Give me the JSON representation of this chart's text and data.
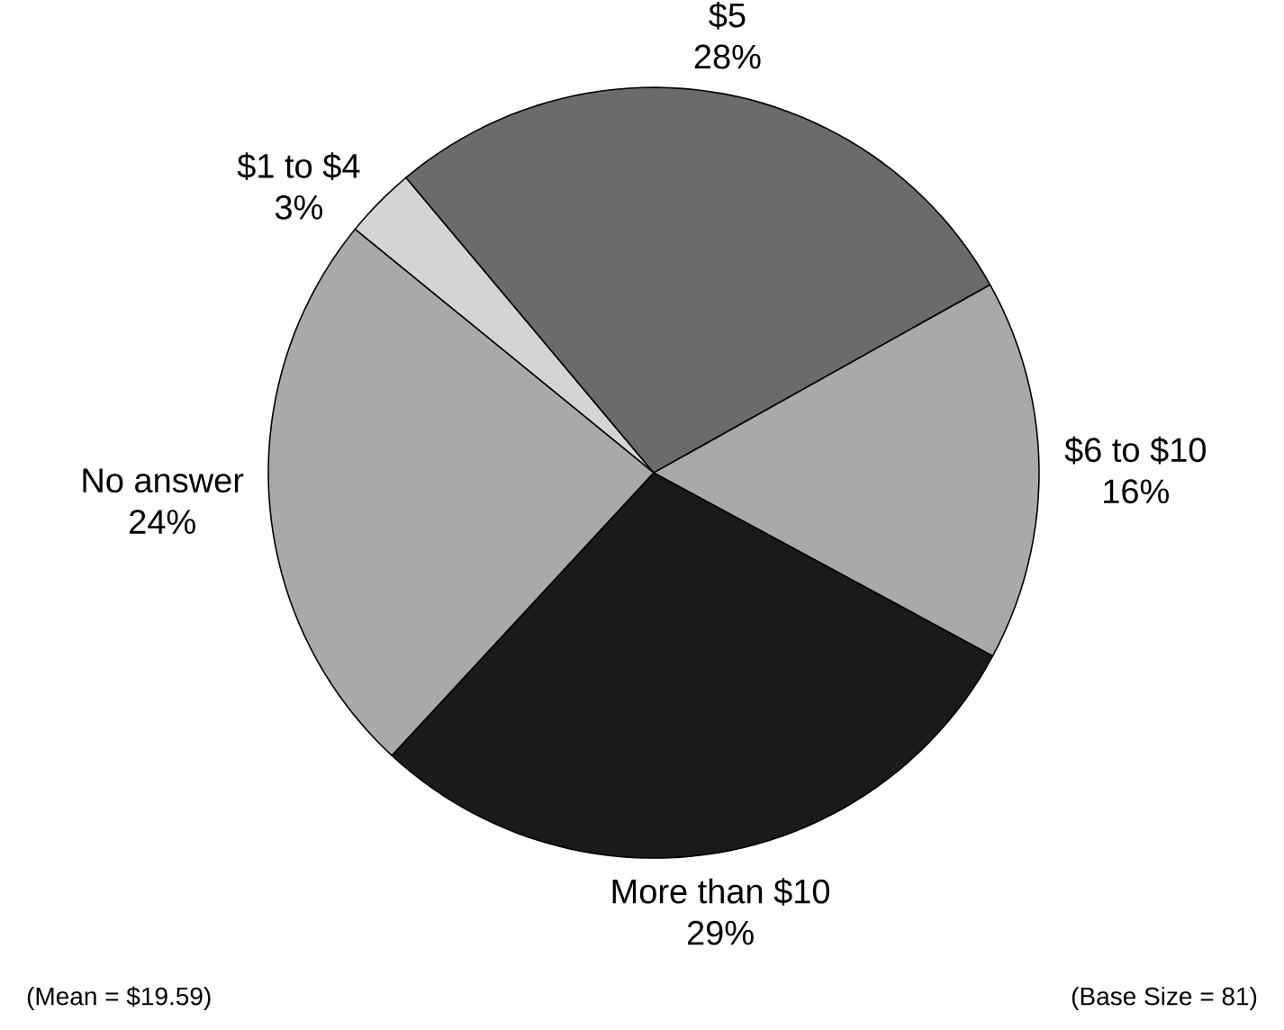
{
  "chart_data": {
    "type": "pie",
    "categories": [
      "$1 to $4",
      "$5",
      "$6 to $10",
      "More than $10",
      "No answer"
    ],
    "values": [
      3,
      28,
      16,
      29,
      24
    ],
    "value_labels": [
      "3%",
      "28%",
      "16%",
      "29%",
      "24%"
    ],
    "colors": [
      "#d4d4d4",
      "#6b6b6b",
      "#a9a9a9",
      "#1a1a1a",
      "#a9a9a9"
    ],
    "annotations": [
      "(Mean = $19.59)",
      "(Base Size = 81)"
    ]
  }
}
